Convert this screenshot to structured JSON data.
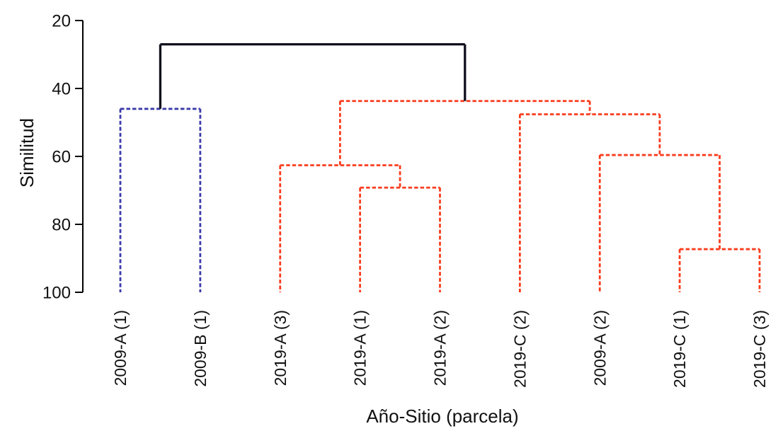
{
  "chart_data": {
    "type": "dendrogram",
    "title": "",
    "xlabel": "Año-Sitio (parcela)",
    "ylabel": "Similitud",
    "y_axis": {
      "min": 20,
      "max": 100,
      "ticks": [
        20,
        40,
        60,
        80,
        100
      ],
      "direction": "similarity decreases upward (20 at top, 100 at bottom)"
    },
    "leaves": [
      "2009-A (1)",
      "2009-B (1)",
      "2019-A (3)",
      "2019-A (1)",
      "2019-A (2)",
      "2019-C (2)",
      "2009-A (2)",
      "2019-C (1)",
      "2019-C (3)"
    ],
    "colors": {
      "blue_cluster": "#3c3caa",
      "red_cluster": "#fa3c1e",
      "root_link": "#10101e",
      "axis": "#000000"
    },
    "tree": {
      "similarity": 27,
      "color": "#10101e",
      "dashed": false,
      "children": [
        {
          "similarity": 46,
          "color": "#3c3caa",
          "dashed": true,
          "children": [
            {
              "leaf": 0
            },
            {
              "leaf": 1
            }
          ]
        },
        {
          "similarity": 43.7,
          "color": "#fa3c1e",
          "dashed": true,
          "children": [
            {
              "similarity": 62.6,
              "color": "#fa3c1e",
              "dashed": true,
              "children": [
                {
                  "leaf": 2
                },
                {
                  "similarity": 69.2,
                  "color": "#fa3c1e",
                  "dashed": true,
                  "children": [
                    {
                      "leaf": 3
                    },
                    {
                      "leaf": 4
                    }
                  ]
                }
              ]
            },
            {
              "similarity": 47.6,
              "color": "#fa3c1e",
              "dashed": true,
              "children": [
                {
                  "leaf": 5
                },
                {
                  "similarity": 59.6,
                  "color": "#fa3c1e",
                  "dashed": true,
                  "children": [
                    {
                      "leaf": 6
                    },
                    {
                      "similarity": 87.3,
                      "color": "#fa3c1e",
                      "dashed": true,
                      "children": [
                        {
                          "leaf": 7
                        },
                        {
                          "leaf": 8
                        }
                      ]
                    }
                  ]
                }
              ]
            }
          ]
        }
      ]
    }
  }
}
